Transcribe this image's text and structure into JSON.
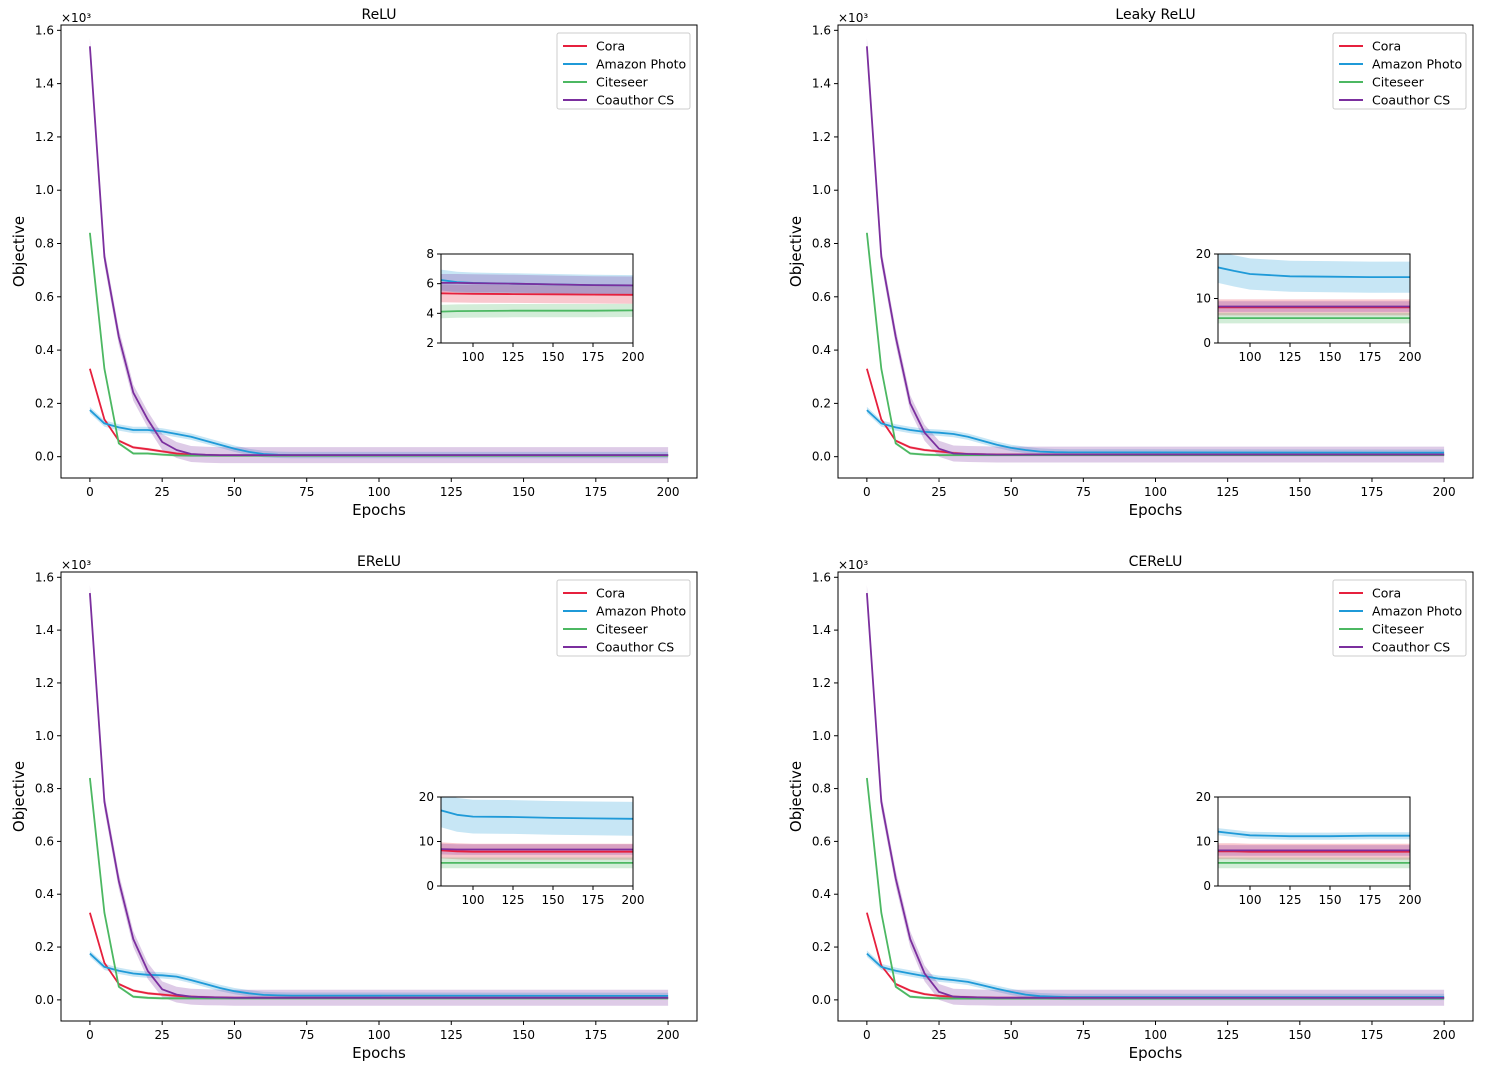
{
  "figure": {
    "colors": {
      "cora": "#e6203d",
      "amazon": "#1f9ad8",
      "citeseer": "#4cb862",
      "coauthor": "#7b2f9e"
    }
  },
  "chart_data": [
    {
      "type": "line",
      "title": "ReLU",
      "xlabel": "Epochs",
      "ylabel": "Objective",
      "y_scale_label": "×10³",
      "xlim": [
        -10,
        210
      ],
      "ylim": [
        -0.08,
        1.62
      ],
      "xticks": [
        0,
        25,
        50,
        75,
        100,
        125,
        150,
        175,
        200
      ],
      "yticks": [
        "0.0",
        "0.2",
        "0.4",
        "0.6",
        "0.8",
        "1.0",
        "1.2",
        "1.4",
        "1.6"
      ],
      "legend": [
        "Cora",
        "Amazon Photo",
        "Citeseer",
        "Coauthor CS"
      ],
      "legend_position": "top-right",
      "x": [
        0,
        5,
        10,
        15,
        20,
        25,
        30,
        35,
        40,
        45,
        50,
        55,
        60,
        65,
        70,
        75,
        200
      ],
      "series": [
        {
          "name": "Cora",
          "color_key": "cora",
          "band": 0.005,
          "values": [
            0.33,
            0.14,
            0.06,
            0.035,
            0.028,
            0.02,
            0.012,
            0.008,
            0.006,
            0.005,
            0.005,
            0.005,
            0.005,
            0.005,
            0.005,
            0.005,
            0.005
          ]
        },
        {
          "name": "Amazon Photo",
          "color_key": "amazon",
          "band": 0.012,
          "values": [
            0.175,
            0.125,
            0.11,
            0.1,
            0.1,
            0.095,
            0.085,
            0.075,
            0.06,
            0.045,
            0.03,
            0.018,
            0.01,
            0.007,
            0.006,
            0.006,
            0.006
          ]
        },
        {
          "name": "Citeseer",
          "color_key": "citeseer",
          "band": 0.005,
          "values": [
            0.84,
            0.33,
            0.05,
            0.012,
            0.012,
            0.008,
            0.005,
            0.004,
            0.004,
            0.004,
            0.004,
            0.004,
            0.004,
            0.004,
            0.004,
            0.004,
            0.004
          ]
        },
        {
          "name": "Coauthor CS",
          "color_key": "coauthor",
          "band": 0.03,
          "values": [
            1.54,
            0.75,
            0.45,
            0.24,
            0.14,
            0.055,
            0.025,
            0.01,
            0.007,
            0.006,
            0.006,
            0.006,
            0.006,
            0.006,
            0.006,
            0.006,
            0.006
          ]
        }
      ],
      "inset": {
        "xlim": [
          80,
          200
        ],
        "ylim": [
          2,
          8
        ],
        "xticks": [
          100,
          125,
          150,
          175,
          200
        ],
        "yticks": [
          2,
          4,
          6,
          8
        ],
        "x": [
          80,
          90,
          100,
          125,
          150,
          175,
          200
        ],
        "series": [
          {
            "name": "Cora",
            "color_key": "cora",
            "band": 0.6,
            "values": [
              5.35,
              5.33,
              5.32,
              5.3,
              5.28,
              5.26,
              5.25
            ]
          },
          {
            "name": "Amazon Photo",
            "color_key": "amazon",
            "band": 0.7,
            "values": [
              6.25,
              6.1,
              6.05,
              6.0,
              5.95,
              5.9,
              5.88
            ]
          },
          {
            "name": "Citeseer",
            "color_key": "citeseer",
            "band": 0.45,
            "values": [
              4.12,
              4.15,
              4.16,
              4.18,
              4.18,
              4.18,
              4.2
            ]
          },
          {
            "name": "Coauthor CS",
            "color_key": "coauthor",
            "band": 0.6,
            "values": [
              6.05,
              6.05,
              6.03,
              6.0,
              5.95,
              5.9,
              5.88
            ]
          }
        ]
      }
    },
    {
      "type": "line",
      "title": "Leaky ReLU",
      "xlabel": "Epochs",
      "ylabel": "Objective",
      "y_scale_label": "×10³",
      "xlim": [
        -10,
        210
      ],
      "ylim": [
        -0.08,
        1.62
      ],
      "xticks": [
        0,
        25,
        50,
        75,
        100,
        125,
        150,
        175,
        200
      ],
      "yticks": [
        "0.0",
        "0.2",
        "0.4",
        "0.6",
        "0.8",
        "1.0",
        "1.2",
        "1.4",
        "1.6"
      ],
      "legend": [
        "Cora",
        "Amazon Photo",
        "Citeseer",
        "Coauthor CS"
      ],
      "legend_position": "top-right",
      "x": [
        0,
        5,
        10,
        15,
        20,
        25,
        30,
        35,
        40,
        45,
        50,
        55,
        60,
        65,
        70,
        75,
        200
      ],
      "series": [
        {
          "name": "Cora",
          "color_key": "cora",
          "band": 0.005,
          "values": [
            0.33,
            0.14,
            0.06,
            0.035,
            0.025,
            0.02,
            0.014,
            0.01,
            0.009,
            0.008,
            0.008,
            0.008,
            0.008,
            0.008,
            0.008,
            0.008,
            0.008
          ]
        },
        {
          "name": "Amazon Photo",
          "color_key": "amazon",
          "band": 0.012,
          "values": [
            0.175,
            0.125,
            0.11,
            0.1,
            0.093,
            0.09,
            0.085,
            0.075,
            0.06,
            0.045,
            0.033,
            0.025,
            0.019,
            0.017,
            0.016,
            0.016,
            0.015
          ]
        },
        {
          "name": "Citeseer",
          "color_key": "citeseer",
          "band": 0.005,
          "values": [
            0.84,
            0.33,
            0.05,
            0.012,
            0.008,
            0.006,
            0.006,
            0.006,
            0.006,
            0.006,
            0.006,
            0.006,
            0.006,
            0.006,
            0.006,
            0.006,
            0.006
          ]
        },
        {
          "name": "Coauthor CS",
          "color_key": "coauthor",
          "band": 0.03,
          "values": [
            1.54,
            0.75,
            0.45,
            0.2,
            0.09,
            0.03,
            0.012,
            0.01,
            0.009,
            0.008,
            0.008,
            0.008,
            0.008,
            0.008,
            0.008,
            0.008,
            0.008
          ]
        }
      ],
      "inset": {
        "xlim": [
          80,
          200
        ],
        "ylim": [
          0,
          20
        ],
        "xticks": [
          100,
          125,
          150,
          175,
          200
        ],
        "yticks": [
          0,
          10,
          20
        ],
        "x": [
          80,
          90,
          100,
          125,
          150,
          175,
          200
        ],
        "series": [
          {
            "name": "Cora",
            "color_key": "cora",
            "band": 1.8,
            "values": [
              8.0,
              8.0,
              8.0,
              8.0,
              8.0,
              8.0,
              8.0
            ]
          },
          {
            "name": "Amazon Photo",
            "color_key": "amazon",
            "band": 3.5,
            "values": [
              17.0,
              16.2,
              15.5,
              15.0,
              14.9,
              14.8,
              14.8
            ]
          },
          {
            "name": "Citeseer",
            "color_key": "citeseer",
            "band": 1.2,
            "values": [
              5.6,
              5.6,
              5.6,
              5.6,
              5.6,
              5.6,
              5.6
            ]
          },
          {
            "name": "Coauthor CS",
            "color_key": "coauthor",
            "band": 1.2,
            "values": [
              8.2,
              8.2,
              8.2,
              8.2,
              8.2,
              8.2,
              8.2
            ]
          }
        ]
      }
    },
    {
      "type": "line",
      "title": "EReLU",
      "xlabel": "Epochs",
      "ylabel": "Objective",
      "y_scale_label": "×10³",
      "xlim": [
        -10,
        210
      ],
      "ylim": [
        -0.08,
        1.62
      ],
      "xticks": [
        0,
        25,
        50,
        75,
        100,
        125,
        150,
        175,
        200
      ],
      "yticks": [
        "0.0",
        "0.2",
        "0.4",
        "0.6",
        "0.8",
        "1.0",
        "1.2",
        "1.4",
        "1.6"
      ],
      "legend": [
        "Cora",
        "Amazon Photo",
        "Citeseer",
        "Coauthor CS"
      ],
      "legend_position": "top-right",
      "x": [
        0,
        5,
        10,
        15,
        20,
        25,
        30,
        35,
        40,
        45,
        50,
        55,
        60,
        65,
        70,
        75,
        200
      ],
      "series": [
        {
          "name": "Cora",
          "color_key": "cora",
          "band": 0.005,
          "values": [
            0.33,
            0.14,
            0.06,
            0.035,
            0.025,
            0.02,
            0.015,
            0.012,
            0.01,
            0.009,
            0.008,
            0.008,
            0.008,
            0.008,
            0.008,
            0.008,
            0.008
          ]
        },
        {
          "name": "Amazon Photo",
          "color_key": "amazon",
          "band": 0.012,
          "values": [
            0.175,
            0.125,
            0.11,
            0.1,
            0.095,
            0.093,
            0.088,
            0.075,
            0.06,
            0.045,
            0.033,
            0.025,
            0.019,
            0.017,
            0.016,
            0.016,
            0.015
          ]
        },
        {
          "name": "Citeseer",
          "color_key": "citeseer",
          "band": 0.005,
          "values": [
            0.84,
            0.33,
            0.05,
            0.012,
            0.008,
            0.006,
            0.006,
            0.006,
            0.006,
            0.006,
            0.006,
            0.006,
            0.006,
            0.006,
            0.006,
            0.006,
            0.006
          ]
        },
        {
          "name": "Coauthor CS",
          "color_key": "coauthor",
          "band": 0.03,
          "values": [
            1.54,
            0.75,
            0.45,
            0.23,
            0.11,
            0.04,
            0.02,
            0.012,
            0.01,
            0.009,
            0.008,
            0.008,
            0.008,
            0.008,
            0.008,
            0.008,
            0.008
          ]
        }
      ],
      "inset": {
        "xlim": [
          80,
          200
        ],
        "ylim": [
          0,
          20
        ],
        "xticks": [
          100,
          125,
          150,
          175,
          200
        ],
        "yticks": [
          0,
          10,
          20
        ],
        "x": [
          80,
          90,
          100,
          125,
          150,
          175,
          200
        ],
        "series": [
          {
            "name": "Cora",
            "color_key": "cora",
            "band": 1.8,
            "values": [
              8.0,
              7.8,
              7.7,
              7.7,
              7.7,
              7.7,
              7.7
            ]
          },
          {
            "name": "Amazon Photo",
            "color_key": "amazon",
            "band": 3.8,
            "values": [
              17.0,
              16.0,
              15.6,
              15.5,
              15.3,
              15.2,
              15.1
            ]
          },
          {
            "name": "Citeseer",
            "color_key": "citeseer",
            "band": 1.2,
            "values": [
              5.2,
              5.2,
              5.2,
              5.2,
              5.2,
              5.2,
              5.2
            ]
          },
          {
            "name": "Coauthor CS",
            "color_key": "coauthor",
            "band": 1.2,
            "values": [
              8.3,
              8.2,
              8.2,
              8.2,
              8.2,
              8.2,
              8.2
            ]
          }
        ]
      }
    },
    {
      "type": "line",
      "title": "CEReLU",
      "xlabel": "Epochs",
      "ylabel": "Objective",
      "y_scale_label": "×10³",
      "xlim": [
        -10,
        210
      ],
      "ylim": [
        -0.08,
        1.62
      ],
      "xticks": [
        0,
        25,
        50,
        75,
        100,
        125,
        150,
        175,
        200
      ],
      "yticks": [
        "0.0",
        "0.2",
        "0.4",
        "0.6",
        "0.8",
        "1.0",
        "1.2",
        "1.4",
        "1.6"
      ],
      "legend": [
        "Cora",
        "Amazon Photo",
        "Citeseer",
        "Coauthor CS"
      ],
      "legend_position": "top-right",
      "x": [
        0,
        5,
        10,
        15,
        20,
        25,
        30,
        35,
        40,
        45,
        50,
        55,
        60,
        65,
        70,
        75,
        200
      ],
      "series": [
        {
          "name": "Cora",
          "color_key": "cora",
          "band": 0.005,
          "values": [
            0.33,
            0.13,
            0.06,
            0.035,
            0.022,
            0.015,
            0.012,
            0.01,
            0.009,
            0.008,
            0.008,
            0.008,
            0.008,
            0.008,
            0.008,
            0.008,
            0.008
          ]
        },
        {
          "name": "Amazon Photo",
          "color_key": "amazon",
          "band": 0.012,
          "values": [
            0.175,
            0.125,
            0.11,
            0.1,
            0.09,
            0.08,
            0.075,
            0.068,
            0.055,
            0.042,
            0.03,
            0.02,
            0.014,
            0.012,
            0.011,
            0.011,
            0.011
          ]
        },
        {
          "name": "Citeseer",
          "color_key": "citeseer",
          "band": 0.005,
          "values": [
            0.84,
            0.33,
            0.05,
            0.012,
            0.008,
            0.006,
            0.005,
            0.005,
            0.005,
            0.005,
            0.005,
            0.005,
            0.005,
            0.005,
            0.005,
            0.005,
            0.005
          ]
        },
        {
          "name": "Coauthor CS",
          "color_key": "coauthor",
          "band": 0.03,
          "values": [
            1.54,
            0.75,
            0.46,
            0.23,
            0.1,
            0.03,
            0.012,
            0.01,
            0.009,
            0.008,
            0.008,
            0.008,
            0.008,
            0.008,
            0.008,
            0.008,
            0.008
          ]
        }
      ],
      "inset": {
        "xlim": [
          80,
          200
        ],
        "ylim": [
          0,
          20
        ],
        "xticks": [
          100,
          125,
          150,
          175,
          200
        ],
        "yticks": [
          0,
          10,
          20
        ],
        "x": [
          80,
          90,
          100,
          125,
          150,
          175,
          200
        ],
        "series": [
          {
            "name": "Cora",
            "color_key": "cora",
            "band": 1.8,
            "values": [
              7.8,
              7.8,
              7.7,
              7.7,
              7.7,
              7.7,
              7.7
            ]
          },
          {
            "name": "Amazon Photo",
            "color_key": "amazon",
            "band": 0.8,
            "values": [
              12.2,
              11.8,
              11.4,
              11.2,
              11.2,
              11.3,
              11.3
            ]
          },
          {
            "name": "Citeseer",
            "color_key": "citeseer",
            "band": 1.2,
            "values": [
              5.2,
              5.2,
              5.2,
              5.2,
              5.2,
              5.2,
              5.2
            ]
          },
          {
            "name": "Coauthor CS",
            "color_key": "coauthor",
            "band": 1.2,
            "values": [
              8.0,
              8.0,
              8.0,
              8.0,
              8.0,
              8.0,
              8.0
            ]
          }
        ]
      }
    }
  ]
}
